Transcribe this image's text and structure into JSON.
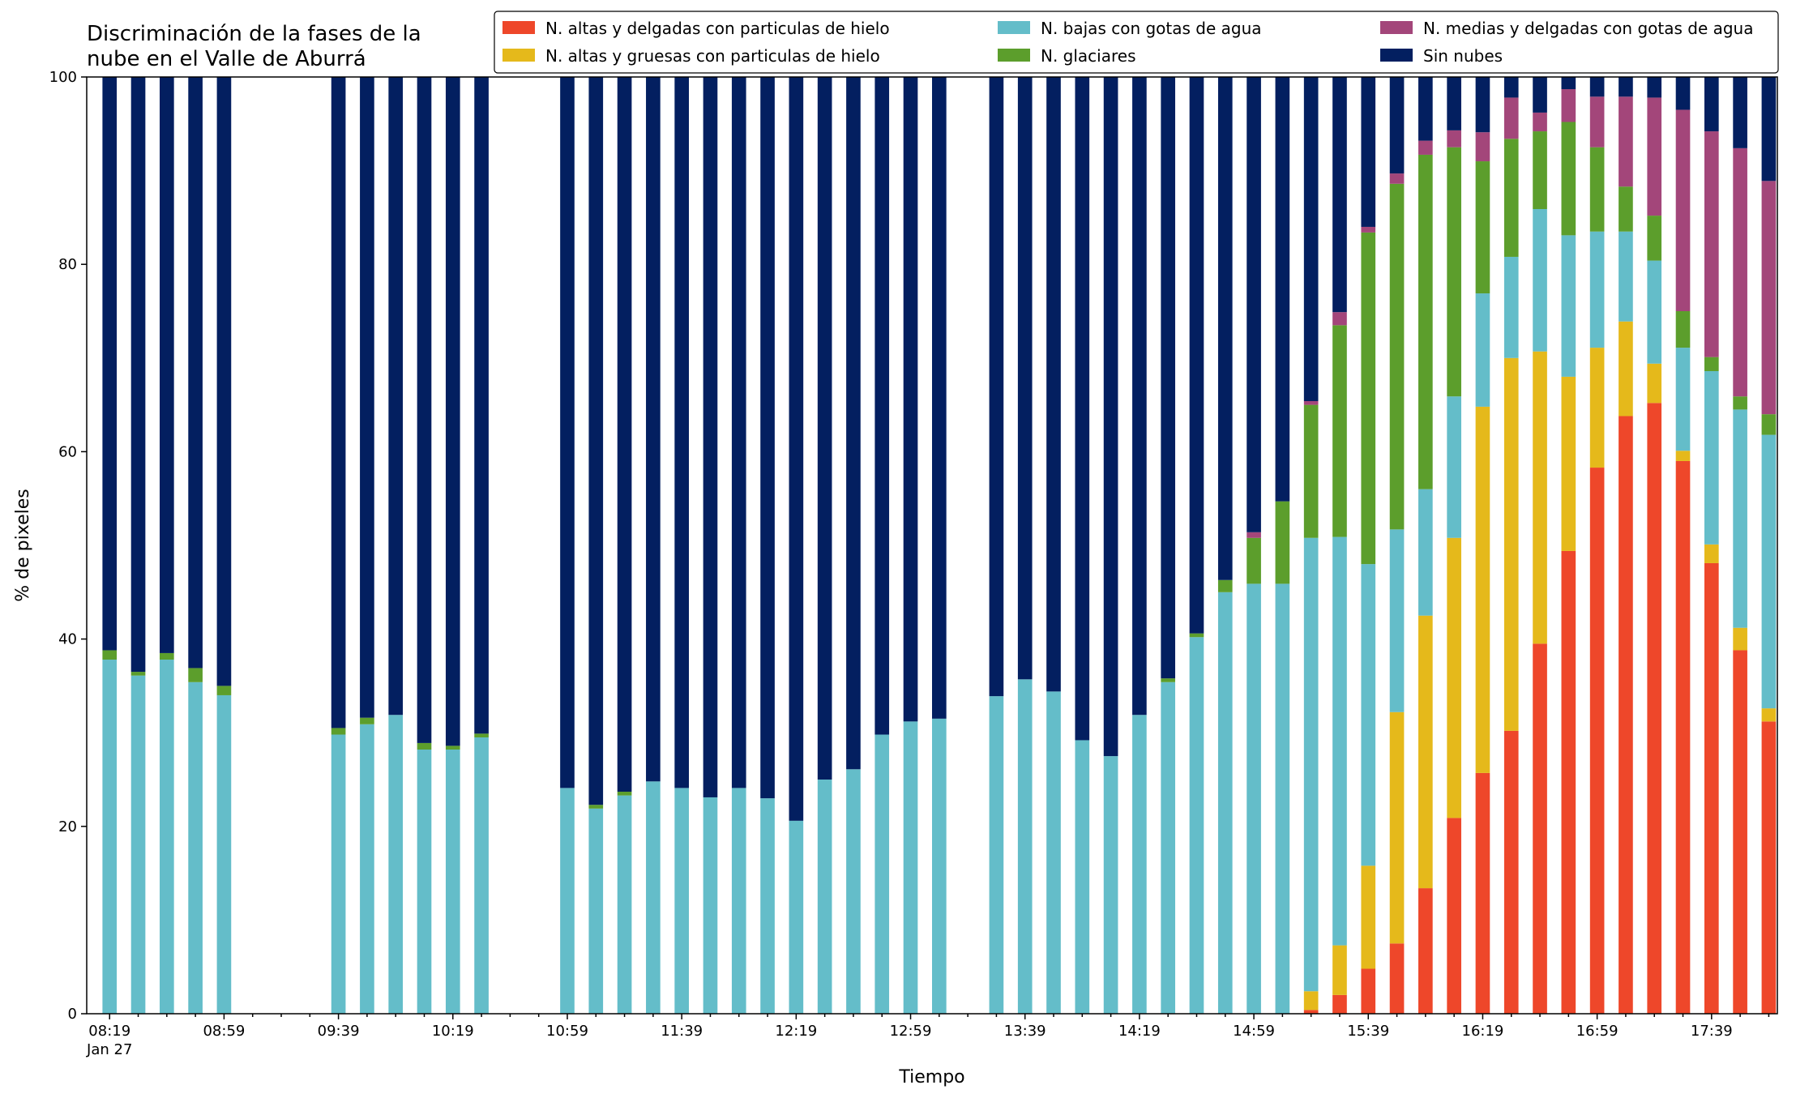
{
  "chart_data": {
    "type": "bar",
    "stacked": true,
    "title": "Discriminación de la fases de la\nnube en el Valle de Aburrá",
    "xlabel": "Tiempo",
    "ylabel": "% de pixeles",
    "ylim": [
      0,
      100
    ],
    "yticks": [
      0,
      20,
      40,
      60,
      80,
      100
    ],
    "x_range_minutes": [
      -8,
      583
    ],
    "x_slot_minutes": 10,
    "xtick_labels": [
      {
        "minutes": 0,
        "label": "08:19",
        "sublabel": "Jan 27"
      },
      {
        "minutes": 40,
        "label": "08:59"
      },
      {
        "minutes": 80,
        "label": "09:39"
      },
      {
        "minutes": 120,
        "label": "10:19"
      },
      {
        "minutes": 160,
        "label": "10:59"
      },
      {
        "minutes": 200,
        "label": "11:39"
      },
      {
        "minutes": 240,
        "label": "12:19"
      },
      {
        "minutes": 280,
        "label": "12:59"
      },
      {
        "minutes": 320,
        "label": "13:39"
      },
      {
        "minutes": 360,
        "label": "14:19"
      },
      {
        "minutes": 400,
        "label": "14:59"
      },
      {
        "minutes": 440,
        "label": "15:39"
      },
      {
        "minutes": 480,
        "label": "16:19"
      },
      {
        "minutes": 520,
        "label": "16:59"
      },
      {
        "minutes": 560,
        "label": "17:39"
      }
    ],
    "legend_placement": "top-right",
    "series": [
      {
        "name": "N. altas y delgadas con particulas de hielo",
        "color": "#ee472a"
      },
      {
        "name": "N. altas y gruesas con particulas de hielo",
        "color": "#e5b91b"
      },
      {
        "name": "N. bajas con gotas de agua",
        "color": "#64bdc9"
      },
      {
        "name": "N. glaciares",
        "color": "#5c9e2c"
      },
      {
        "name": "N. medias y delgadas con gotas de agua",
        "color": "#a3467a"
      },
      {
        "name": "Sin nubes",
        "color": "#031f60"
      }
    ],
    "bars": [
      {
        "minutes": 0,
        "values": [
          0,
          0,
          37.8,
          1.0,
          0,
          61.2
        ]
      },
      {
        "minutes": 10,
        "values": [
          0,
          0,
          36.1,
          0.4,
          0,
          63.5
        ]
      },
      {
        "minutes": 20,
        "values": [
          0,
          0,
          37.8,
          0.7,
          0,
          61.5
        ]
      },
      {
        "minutes": 30,
        "values": [
          0,
          0,
          35.4,
          1.5,
          0,
          63.1
        ]
      },
      {
        "minutes": 40,
        "values": [
          0,
          0,
          34.0,
          1.0,
          0,
          65.0
        ]
      },
      {
        "minutes": 80,
        "values": [
          0,
          0,
          29.8,
          0.7,
          0,
          69.5
        ]
      },
      {
        "minutes": 90,
        "values": [
          0,
          0,
          30.9,
          0.7,
          0,
          68.4
        ]
      },
      {
        "minutes": 100,
        "values": [
          0,
          0,
          31.9,
          0,
          0,
          68.1
        ]
      },
      {
        "minutes": 110,
        "values": [
          0,
          0,
          28.2,
          0.7,
          0,
          71.1
        ]
      },
      {
        "minutes": 120,
        "values": [
          0,
          0,
          28.2,
          0.4,
          0,
          71.4
        ]
      },
      {
        "minutes": 130,
        "values": [
          0,
          0,
          29.5,
          0.4,
          0,
          70.1
        ]
      },
      {
        "minutes": 160,
        "values": [
          0,
          0,
          24.1,
          0,
          0,
          75.9
        ]
      },
      {
        "minutes": 170,
        "values": [
          0,
          0,
          21.9,
          0.4,
          0,
          77.7
        ]
      },
      {
        "minutes": 180,
        "values": [
          0,
          0,
          23.3,
          0.4,
          0,
          76.3
        ]
      },
      {
        "minutes": 190,
        "values": [
          0,
          0,
          24.8,
          0,
          0,
          75.2
        ]
      },
      {
        "minutes": 200,
        "values": [
          0,
          0,
          24.1,
          0,
          0,
          75.9
        ]
      },
      {
        "minutes": 210,
        "values": [
          0,
          0,
          23.1,
          0,
          0,
          76.9
        ]
      },
      {
        "minutes": 220,
        "values": [
          0,
          0,
          24.1,
          0,
          0,
          75.9
        ]
      },
      {
        "minutes": 230,
        "values": [
          0,
          0,
          23.0,
          0,
          0,
          77.0
        ]
      },
      {
        "minutes": 240,
        "values": [
          0,
          0,
          20.6,
          0,
          0,
          79.4
        ]
      },
      {
        "minutes": 250,
        "values": [
          0,
          0,
          25.0,
          0,
          0,
          75.0
        ]
      },
      {
        "minutes": 260,
        "values": [
          0,
          0,
          26.1,
          0,
          0,
          73.9
        ]
      },
      {
        "minutes": 270,
        "values": [
          0,
          0,
          29.8,
          0,
          0,
          70.2
        ]
      },
      {
        "minutes": 280,
        "values": [
          0,
          0,
          31.2,
          0,
          0,
          68.8
        ]
      },
      {
        "minutes": 290,
        "values": [
          0,
          0,
          31.5,
          0,
          0,
          68.5
        ]
      },
      {
        "minutes": 310,
        "values": [
          0,
          0,
          33.9,
          0,
          0,
          66.1
        ]
      },
      {
        "minutes": 320,
        "values": [
          0,
          0,
          35.7,
          0,
          0,
          64.3
        ]
      },
      {
        "minutes": 330,
        "values": [
          0,
          0,
          34.4,
          0,
          0,
          65.6
        ]
      },
      {
        "minutes": 340,
        "values": [
          0,
          0,
          29.2,
          0,
          0,
          70.8
        ]
      },
      {
        "minutes": 350,
        "values": [
          0,
          0,
          27.5,
          0,
          0,
          72.5
        ]
      },
      {
        "minutes": 360,
        "values": [
          0,
          0,
          31.9,
          0,
          0,
          68.1
        ]
      },
      {
        "minutes": 370,
        "values": [
          0,
          0,
          35.4,
          0.4,
          0,
          64.2
        ]
      },
      {
        "minutes": 380,
        "values": [
          0,
          0,
          40.2,
          0.4,
          0,
          59.4
        ]
      },
      {
        "minutes": 390,
        "values": [
          0,
          0,
          45.0,
          1.3,
          0,
          53.7
        ]
      },
      {
        "minutes": 400,
        "values": [
          0,
          0,
          45.9,
          4.9,
          0.6,
          48.6
        ]
      },
      {
        "minutes": 410,
        "values": [
          0,
          0,
          45.9,
          8.8,
          0,
          45.3
        ]
      },
      {
        "minutes": 420,
        "values": [
          0.4,
          2.0,
          48.4,
          14.2,
          0.4,
          34.6
        ]
      },
      {
        "minutes": 430,
        "values": [
          2.0,
          5.3,
          43.6,
          22.6,
          1.4,
          25.1
        ]
      },
      {
        "minutes": 440,
        "values": [
          4.8,
          11.0,
          32.2,
          35.4,
          0.6,
          16.0
        ]
      },
      {
        "minutes": 450,
        "values": [
          7.5,
          24.7,
          19.5,
          36.9,
          1.1,
          10.3
        ]
      },
      {
        "minutes": 460,
        "values": [
          13.4,
          29.1,
          13.5,
          35.7,
          1.5,
          6.8
        ]
      },
      {
        "minutes": 470,
        "values": [
          20.9,
          29.9,
          15.1,
          26.6,
          1.8,
          5.7
        ]
      },
      {
        "minutes": 480,
        "values": [
          25.7,
          39.1,
          12.1,
          14.1,
          3.1,
          5.9
        ]
      },
      {
        "minutes": 490,
        "values": [
          30.2,
          39.8,
          10.8,
          12.6,
          4.4,
          2.2
        ]
      },
      {
        "minutes": 500,
        "values": [
          39.5,
          31.2,
          15.2,
          8.3,
          2.0,
          3.8
        ]
      },
      {
        "minutes": 510,
        "values": [
          49.4,
          18.6,
          15.1,
          12.1,
          3.5,
          1.3
        ]
      },
      {
        "minutes": 520,
        "values": [
          58.3,
          12.8,
          12.4,
          9.0,
          5.4,
          2.1
        ]
      },
      {
        "minutes": 530,
        "values": [
          63.8,
          10.1,
          9.6,
          4.8,
          9.6,
          2.1
        ]
      },
      {
        "minutes": 540,
        "values": [
          65.2,
          4.2,
          11.0,
          4.8,
          12.6,
          2.2
        ]
      },
      {
        "minutes": 550,
        "values": [
          59.0,
          1.1,
          11.0,
          3.9,
          21.5,
          3.5
        ]
      },
      {
        "minutes": 560,
        "values": [
          48.1,
          2.0,
          18.5,
          1.5,
          24.1,
          5.8
        ]
      },
      {
        "minutes": 570,
        "values": [
          38.8,
          2.4,
          23.3,
          1.4,
          26.5,
          7.6
        ]
      },
      {
        "minutes": 580,
        "values": [
          31.2,
          1.4,
          29.2,
          2.2,
          24.9,
          11.1
        ]
      }
    ]
  }
}
